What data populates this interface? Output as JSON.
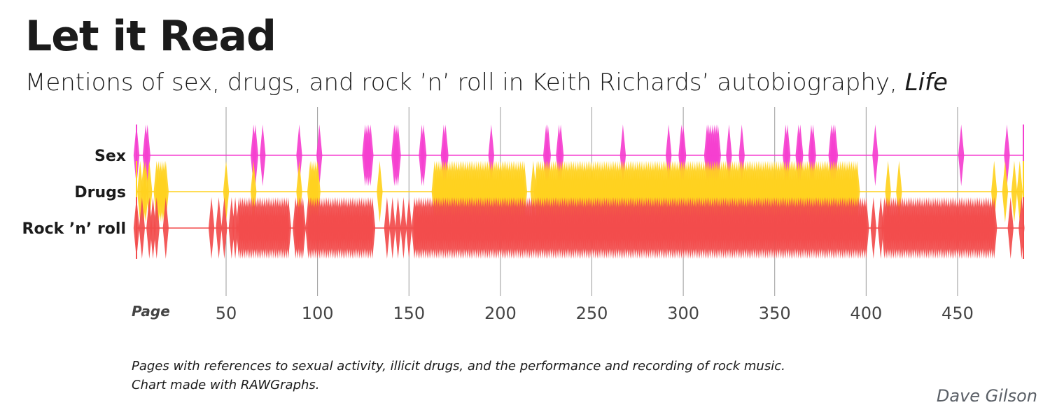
{
  "header": {
    "title": "Let it Read",
    "subtitle_main": "Mentions of sex, drugs, and rock ’n’ roll in Keith Richards’ autobiography, ",
    "subtitle_book": "Life"
  },
  "footer": {
    "note_line1": "Pages with references to sexual activity, illicit drugs, and the performance and recording of rock music.",
    "note_line2": "Chart made with RAWGraphs.",
    "credit": "Dave Gilson"
  },
  "colors": {
    "sex": "#f53fd0",
    "drugs": "#ffd21f",
    "rock": "#f24c4c",
    "gridline": "#9a9a9a",
    "tick_text": "#444444"
  },
  "chart_data": {
    "type": "area",
    "xlabel": "Page",
    "xlim": [
      1,
      486
    ],
    "x_ticks": [
      50,
      100,
      150,
      200,
      250,
      300,
      350,
      400,
      450
    ],
    "grid": true,
    "series": [
      {
        "name": "Sex",
        "key": "sex",
        "pages": [
          1,
          6,
          7,
          65,
          66,
          70,
          90,
          101,
          126,
          127,
          128,
          129,
          142,
          143,
          144,
          157,
          158,
          169,
          170,
          195,
          225,
          226,
          232,
          233,
          267,
          292,
          299,
          300,
          313,
          314,
          315,
          316,
          317,
          318,
          319,
          325,
          332,
          356,
          357,
          363,
          364,
          370,
          371,
          381,
          382,
          383,
          405,
          452,
          477
        ]
      },
      {
        "name": "Drugs",
        "key": "drugs",
        "pages": [
          3,
          5,
          6,
          8,
          12,
          13,
          14,
          15,
          16,
          17,
          50,
          65,
          90,
          96,
          97,
          98,
          99,
          100,
          134,
          164,
          165,
          166,
          167,
          168,
          169,
          170,
          171,
          172,
          173,
          174,
          175,
          176,
          177,
          178,
          179,
          180,
          181,
          182,
          183,
          184,
          185,
          186,
          187,
          188,
          189,
          190,
          191,
          192,
          193,
          194,
          195,
          196,
          197,
          198,
          199,
          200,
          201,
          202,
          203,
          204,
          205,
          206,
          207,
          208,
          209,
          210,
          211,
          212,
          213,
          218,
          220,
          221,
          222,
          223,
          224,
          225,
          226,
          227,
          228,
          229,
          230,
          231,
          232,
          233,
          234,
          235,
          236,
          237,
          238,
          239,
          240,
          241,
          242,
          243,
          244,
          245,
          246,
          247,
          248,
          249,
          250,
          251,
          252,
          253,
          254,
          255,
          256,
          257,
          258,
          259,
          260,
          261,
          262,
          263,
          264,
          265,
          266,
          267,
          268,
          269,
          270,
          271,
          272,
          273,
          274,
          275,
          276,
          277,
          278,
          279,
          280,
          281,
          282,
          283,
          284,
          285,
          286,
          287,
          288,
          289,
          290,
          291,
          292,
          293,
          294,
          295,
          296,
          297,
          298,
          299,
          300,
          301,
          302,
          303,
          304,
          305,
          306,
          307,
          308,
          309,
          310,
          311,
          312,
          313,
          314,
          315,
          316,
          317,
          318,
          319,
          320,
          321,
          322,
          323,
          324,
          325,
          326,
          327,
          328,
          329,
          330,
          331,
          332,
          333,
          334,
          335,
          336,
          337,
          338,
          339,
          340,
          341,
          342,
          343,
          344,
          345,
          346,
          347,
          348,
          349,
          350,
          351,
          352,
          353,
          354,
          355,
          356,
          357,
          358,
          359,
          360,
          361,
          362,
          363,
          364,
          365,
          366,
          367,
          368,
          369,
          370,
          371,
          372,
          373,
          374,
          375,
          376,
          377,
          378,
          379,
          380,
          381,
          382,
          383,
          384,
          385,
          386,
          387,
          388,
          389,
          390,
          391,
          392,
          393,
          394,
          395,
          412,
          418,
          470,
          476,
          481,
          484
        ]
      },
      {
        "name": "Rock ’n’ roll",
        "key": "rock",
        "pages": [
          1,
          4,
          8,
          10,
          12,
          17,
          42,
          46,
          49,
          53,
          55,
          57,
          58,
          59,
          60,
          61,
          62,
          63,
          64,
          65,
          66,
          67,
          68,
          69,
          70,
          71,
          72,
          73,
          74,
          75,
          76,
          77,
          78,
          79,
          80,
          81,
          82,
          83,
          84,
          88,
          89,
          90,
          91,
          92,
          95,
          96,
          97,
          98,
          99,
          100,
          101,
          102,
          103,
          104,
          105,
          106,
          107,
          108,
          109,
          110,
          111,
          112,
          113,
          114,
          115,
          116,
          117,
          118,
          119,
          120,
          121,
          122,
          123,
          124,
          125,
          126,
          127,
          128,
          129,
          130,
          138,
          141,
          144,
          147,
          150,
          153,
          154,
          155,
          156,
          157,
          158,
          159,
          160,
          161,
          162,
          163,
          164,
          165,
          166,
          167,
          168,
          169,
          170,
          171,
          172,
          173,
          174,
          175,
          176,
          177,
          178,
          179,
          180,
          181,
          182,
          183,
          184,
          185,
          186,
          187,
          188,
          189,
          190,
          191,
          192,
          193,
          194,
          195,
          196,
          197,
          198,
          199,
          200,
          201,
          202,
          203,
          204,
          205,
          206,
          207,
          208,
          209,
          210,
          211,
          212,
          213,
          214,
          215,
          216,
          217,
          218,
          219,
          220,
          221,
          222,
          223,
          224,
          225,
          226,
          227,
          228,
          229,
          230,
          231,
          232,
          233,
          234,
          235,
          236,
          237,
          238,
          239,
          240,
          241,
          242,
          243,
          244,
          245,
          246,
          247,
          248,
          249,
          250,
          251,
          252,
          253,
          254,
          255,
          256,
          257,
          258,
          259,
          260,
          261,
          262,
          263,
          264,
          265,
          266,
          267,
          268,
          269,
          270,
          271,
          272,
          273,
          274,
          275,
          276,
          277,
          278,
          279,
          280,
          281,
          282,
          283,
          284,
          285,
          286,
          287,
          288,
          289,
          290,
          291,
          292,
          293,
          294,
          295,
          296,
          297,
          298,
          299,
          300,
          301,
          302,
          303,
          304,
          305,
          306,
          307,
          308,
          309,
          310,
          311,
          312,
          313,
          314,
          315,
          316,
          317,
          318,
          319,
          320,
          321,
          322,
          323,
          324,
          325,
          326,
          327,
          328,
          329,
          330,
          331,
          332,
          333,
          334,
          335,
          336,
          337,
          338,
          339,
          340,
          341,
          342,
          343,
          344,
          345,
          346,
          347,
          348,
          349,
          350,
          351,
          352,
          353,
          354,
          355,
          356,
          357,
          358,
          359,
          360,
          361,
          362,
          363,
          364,
          365,
          366,
          367,
          368,
          369,
          370,
          371,
          372,
          373,
          374,
          375,
          376,
          377,
          378,
          379,
          380,
          381,
          382,
          383,
          384,
          385,
          386,
          387,
          388,
          389,
          390,
          391,
          392,
          393,
          394,
          395,
          396,
          397,
          398,
          399,
          400,
          404,
          408,
          410,
          411,
          412,
          413,
          414,
          415,
          416,
          417,
          418,
          419,
          420,
          421,
          422,
          423,
          424,
          425,
          426,
          427,
          428,
          429,
          430,
          431,
          432,
          433,
          434,
          435,
          436,
          437,
          438,
          439,
          440,
          441,
          442,
          443,
          444,
          445,
          446,
          447,
          448,
          449,
          450,
          451,
          452,
          453,
          454,
          455,
          456,
          457,
          458,
          459,
          460,
          461,
          462,
          463,
          464,
          465,
          466,
          467,
          468,
          469,
          470,
          479,
          485
        ]
      }
    ]
  }
}
